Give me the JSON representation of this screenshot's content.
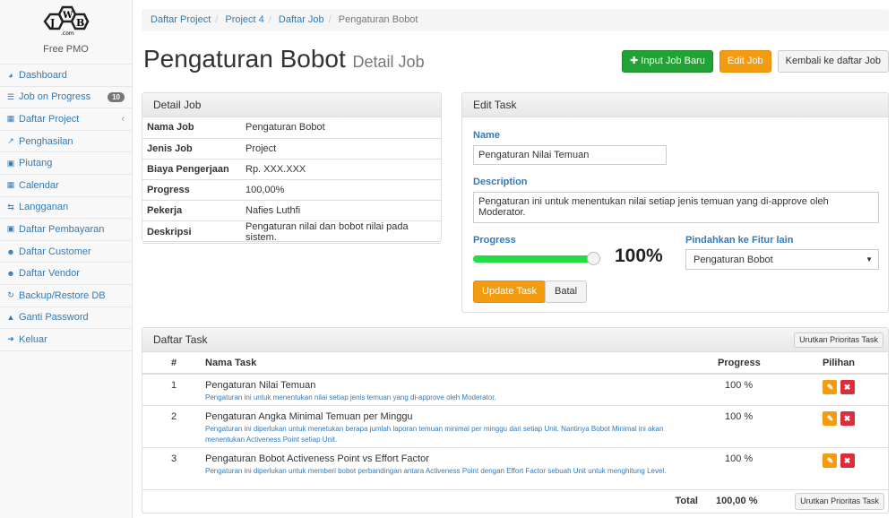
{
  "brand": {
    "logo_text": "JWB.com",
    "subtitle": "Free PMO"
  },
  "sidebar": {
    "items": [
      {
        "icon": "dashboard-icon",
        "glyph": "◕",
        "label": "Dashboard"
      },
      {
        "icon": "list-icon",
        "glyph": "☰",
        "label": "Job on Progress",
        "badge": "10"
      },
      {
        "icon": "table-icon",
        "glyph": "▦",
        "label": "Daftar Project",
        "chevron": "‹"
      },
      {
        "icon": "line-chart-icon",
        "glyph": "↗",
        "label": "Penghasilan"
      },
      {
        "icon": "money-icon",
        "glyph": "▣",
        "label": "Piutang"
      },
      {
        "icon": "calendar-icon",
        "glyph": "▦",
        "label": "Calendar"
      },
      {
        "icon": "retweet-icon",
        "glyph": "⇆",
        "label": "Langganan"
      },
      {
        "icon": "money-icon",
        "glyph": "▣",
        "label": "Daftar Pembayaran"
      },
      {
        "icon": "users-icon",
        "glyph": "☻",
        "label": "Daftar Customer"
      },
      {
        "icon": "users-icon",
        "glyph": "☻",
        "label": "Daftar Vendor"
      },
      {
        "icon": "refresh-icon",
        "glyph": "↻",
        "label": "Backup/Restore DB"
      },
      {
        "icon": "lock-icon",
        "glyph": "▲",
        "label": "Ganti Password"
      },
      {
        "icon": "sign-out-icon",
        "glyph": "➜",
        "label": "Keluar"
      }
    ]
  },
  "breadcrumb": [
    "Daftar Project",
    "Project 4",
    "Daftar Job",
    "Pengaturan Bobot"
  ],
  "header": {
    "title": "Pengaturan Bobot",
    "subtitle": "Detail Job",
    "buttons": {
      "new": "Input Job Baru",
      "edit": "Edit Job",
      "back": "Kembali ke daftar Job"
    }
  },
  "detail": {
    "title": "Detail Job",
    "rows": [
      [
        "Nama Job",
        "Pengaturan Bobot"
      ],
      [
        "Jenis Job",
        "Project"
      ],
      [
        "Biaya Pengerjaan",
        "Rp. XXX.XXX"
      ],
      [
        "Progress",
        "100,00%"
      ],
      [
        "Pekerja",
        "Nafies Luthfi"
      ],
      [
        "Deskripsi",
        "Pengaturan nilai dan bobot nilai pada sistem."
      ]
    ]
  },
  "edit": {
    "title": "Edit Task",
    "name_label": "Name",
    "name_value": "Pengaturan Nilai Temuan",
    "desc_label": "Description",
    "desc_value": "Pengaturan ini untuk menentukan nilai setiap jenis temuan yang di-approve oleh Moderator.",
    "progress_label": "Progress",
    "progress_value": 100,
    "progress_text": "100%",
    "move_label": "Pindahkan ke Fitur lain",
    "move_value": "Pengaturan Bobot",
    "update": "Update Task",
    "cancel": "Batal",
    "accent": "#22dd44"
  },
  "tasks": {
    "title": "Daftar Task",
    "sort_button": "Urutkan Prioritas Task",
    "headers": [
      "#",
      "Nama Task",
      "Progress",
      "Pilihan"
    ],
    "rows": [
      {
        "no": "1",
        "name": "Pengaturan Nilai Temuan",
        "desc": "Pengaturan ini untuk menentukan nilai setiap jenis temuan yang di-approve oleh Moderator.",
        "progress": "100 %"
      },
      {
        "no": "2",
        "name": "Pengaturan Angka Minimal Temuan per Minggu",
        "desc": "Pengaturan ini diperlukan untuk menetukan berapa jumlah laporan temuan minimal per minggu dari setiap Unit. Nantinya Bobot Minimal ini akan menentukan Activeness Point setiap Unit.",
        "progress": "100 %"
      },
      {
        "no": "3",
        "name": "Pengaturan Bobot Activeness Point vs Effort Factor",
        "desc": "Pengaturan ini diperlukan untuk memberi bobot perbandingan antara Activeness Point dengan Effort Factor sebuah Unit untuk menghitung Level.",
        "progress": "100 %"
      }
    ],
    "total_label": "Total",
    "total_value": "100,00 %"
  }
}
